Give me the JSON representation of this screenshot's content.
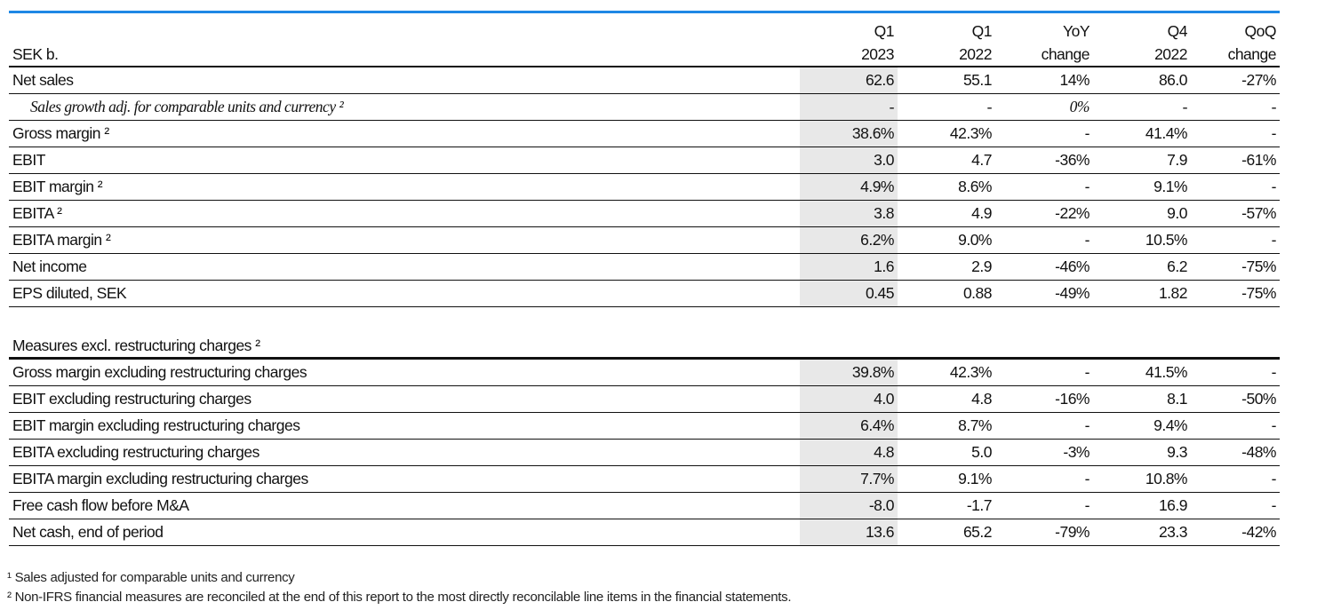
{
  "header": {
    "unit": "SEK b.",
    "columns": [
      {
        "line1": "Q1",
        "line2": "2023"
      },
      {
        "line1": "Q1",
        "line2": "2022"
      },
      {
        "line1": "YoY",
        "line2": "change"
      },
      {
        "line1": "Q4",
        "line2": "2022"
      },
      {
        "line1": "QoQ",
        "line2": "change"
      }
    ]
  },
  "table1": [
    {
      "label": "Net sales",
      "values": [
        "62.6",
        "55.1",
        "14%",
        "86.0",
        "-27%"
      ]
    },
    {
      "label": "Sales growth adj. for comparable units and currency ²",
      "values": [
        "-",
        "-",
        "0%",
        "-",
        "-"
      ]
    },
    {
      "label": "Gross margin ²",
      "values": [
        "38.6%",
        "42.3%",
        "-",
        "41.4%",
        "-"
      ]
    },
    {
      "label": "EBIT",
      "values": [
        "3.0",
        "4.7",
        "-36%",
        "7.9",
        "-61%"
      ]
    },
    {
      "label": "EBIT margin ²",
      "values": [
        "4.9%",
        "8.6%",
        "-",
        "9.1%",
        "-"
      ]
    },
    {
      "label": "EBITA ²",
      "values": [
        "3.8",
        "4.9",
        "-22%",
        "9.0",
        "-57%"
      ]
    },
    {
      "label": "EBITA margin ²",
      "values": [
        "6.2%",
        "9.0%",
        "-",
        "10.5%",
        "-"
      ]
    },
    {
      "label": "Net income",
      "values": [
        "1.6",
        "2.9",
        "-46%",
        "6.2",
        "-75%"
      ]
    },
    {
      "label": "EPS diluted, SEK",
      "values": [
        "0.45",
        "0.88",
        "-49%",
        "1.82",
        "-75%"
      ]
    }
  ],
  "section2": {
    "title": "Measures excl. restructuring charges ²"
  },
  "table2": [
    {
      "label": "Gross margin excluding restructuring charges",
      "values": [
        "39.8%",
        "42.3%",
        "-",
        "41.5%",
        "-"
      ]
    },
    {
      "label": "EBIT excluding restructuring charges",
      "values": [
        "4.0",
        "4.8",
        "-16%",
        "8.1",
        "-50%"
      ]
    },
    {
      "label": "EBIT margin excluding restructuring charges",
      "values": [
        "6.4%",
        "8.7%",
        "-",
        "9.4%",
        "-"
      ]
    },
    {
      "label": "EBITA excluding restructuring charges",
      "values": [
        "4.8",
        "5.0",
        "-3%",
        "9.3",
        "-48%"
      ]
    },
    {
      "label": "EBITA margin excluding restructuring charges",
      "values": [
        "7.7%",
        "9.1%",
        "-",
        "10.8%",
        "-"
      ]
    },
    {
      "label": "Free cash flow before M&A",
      "values": [
        "-8.0",
        "-1.7",
        "-",
        "16.9",
        "-"
      ]
    },
    {
      "label": "Net cash, end of period",
      "values": [
        "13.6",
        "65.2",
        "-79%",
        "23.3",
        "-42%"
      ]
    }
  ],
  "footnotes": [
    "¹ Sales adjusted for comparable units and currency",
    "² Non-IFRS financial measures are reconciled at the end of this report to the most directly reconcilable line items in the financial statements."
  ],
  "colors": {
    "accent_bar": "#1e88e5",
    "highlight_column": "#e8e8e8"
  }
}
